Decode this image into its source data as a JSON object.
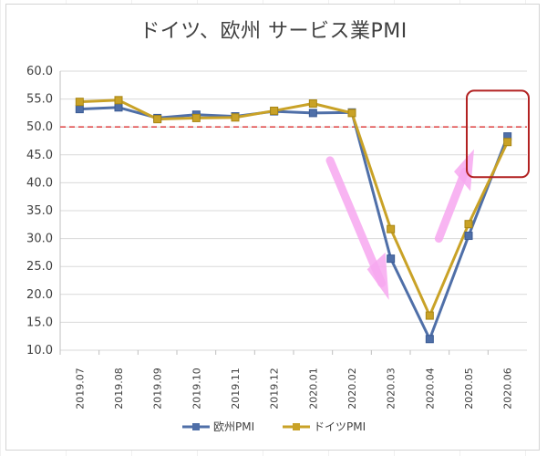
{
  "chart_data": {
    "type": "line",
    "title": "ドイツ、欧州 サービス業PMI",
    "xlabel": "",
    "ylabel": "",
    "categories": [
      "2019.07",
      "2019.08",
      "2019.09",
      "2019.10",
      "2019.11",
      "2019.12",
      "2020.01",
      "2020.02",
      "2020.03",
      "2020.04",
      "2020.05",
      "2020.06"
    ],
    "ylim": [
      10,
      60
    ],
    "yticks": [
      "60.0",
      "55.0",
      "50.0",
      "45.0",
      "40.0",
      "35.0",
      "30.0",
      "25.0",
      "20.0",
      "15.0",
      "10.0"
    ],
    "grid": true,
    "legend_position": "bottom",
    "reference_line": {
      "value": 50,
      "color": "#e05050",
      "style": "dashed"
    },
    "series": [
      {
        "name": "欧州PMI",
        "color": "#4f6fa8",
        "marker": "square",
        "values": [
          53.2,
          53.5,
          51.6,
          52.2,
          51.9,
          52.8,
          52.5,
          52.6,
          26.4,
          12.0,
          30.5,
          48.3
        ]
      },
      {
        "name": "ドイツPMI",
        "color": "#c9a227",
        "marker": "square",
        "values": [
          54.5,
          54.8,
          51.4,
          51.6,
          51.7,
          52.9,
          54.2,
          52.5,
          31.7,
          16.2,
          32.6,
          47.3
        ]
      }
    ],
    "annotations": {
      "highlight_box_color": "#b22222",
      "arrow_color": "#f7a8f0"
    }
  }
}
